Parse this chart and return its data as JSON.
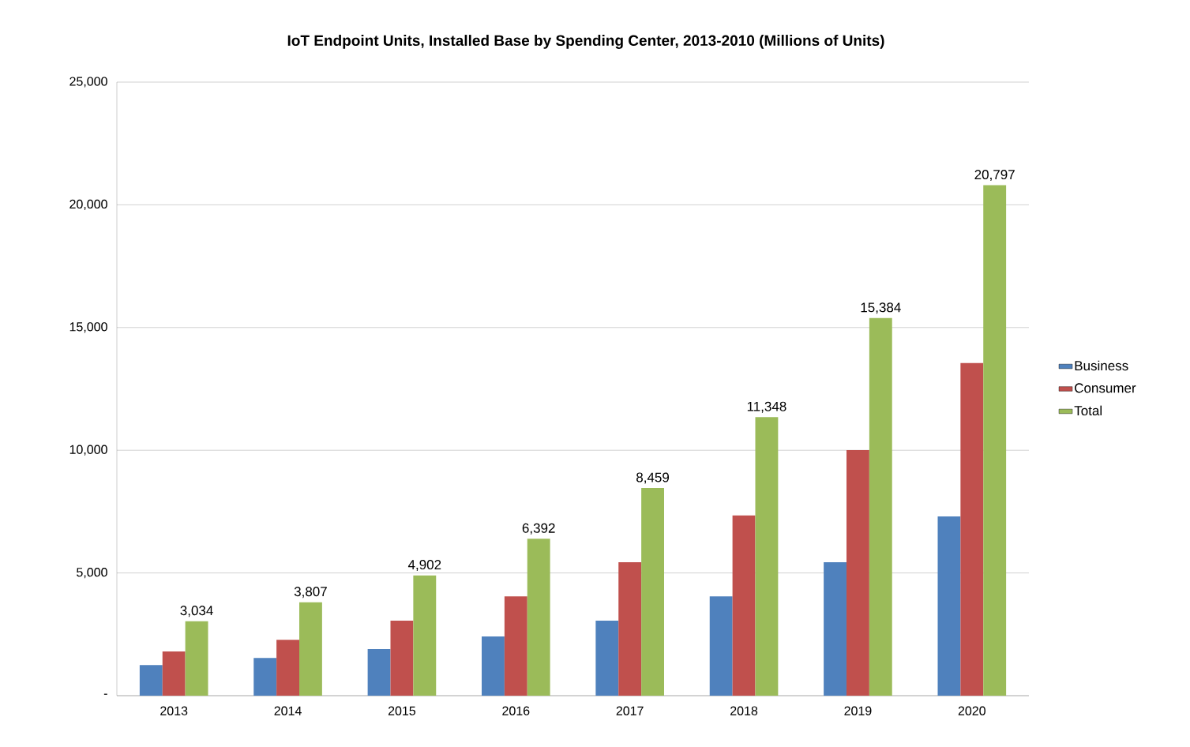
{
  "chart_data": {
    "type": "bar",
    "title": "IoT Endpoint Units, Installed Base by Spending Center, 2013-2010 (Millions of Units)",
    "categories": [
      "2013",
      "2014",
      "2015",
      "2016",
      "2017",
      "2018",
      "2019",
      "2020"
    ],
    "series": [
      {
        "name": "Business",
        "color": "#4f81bd",
        "values": [
          1250,
          1540,
          1900,
          2410,
          3060,
          4050,
          5440,
          7300
        ]
      },
      {
        "name": "Consumer",
        "color": "#c0504d",
        "values": [
          1800,
          2280,
          3060,
          4050,
          5440,
          7340,
          10010,
          13550
        ]
      },
      {
        "name": "Total",
        "color": "#9bbb59",
        "values": [
          3034,
          3807,
          4902,
          6392,
          8459,
          11348,
          15384,
          20797
        ],
        "value_labels": [
          "3,034",
          "3,807",
          "4,902",
          "6,392",
          "8,459",
          "11,348",
          "15,384",
          "20,797"
        ]
      }
    ],
    "ylim": [
      0,
      25000
    ],
    "yticks": [
      {
        "value": 0,
        "label": "-"
      },
      {
        "value": 5000,
        "label": "5,000"
      },
      {
        "value": 10000,
        "label": "10,000"
      },
      {
        "value": 15000,
        "label": "15,000"
      },
      {
        "value": 20000,
        "label": "20,000"
      },
      {
        "value": 25000,
        "label": "25,000"
      }
    ],
    "grid": "y",
    "legend": "right"
  }
}
